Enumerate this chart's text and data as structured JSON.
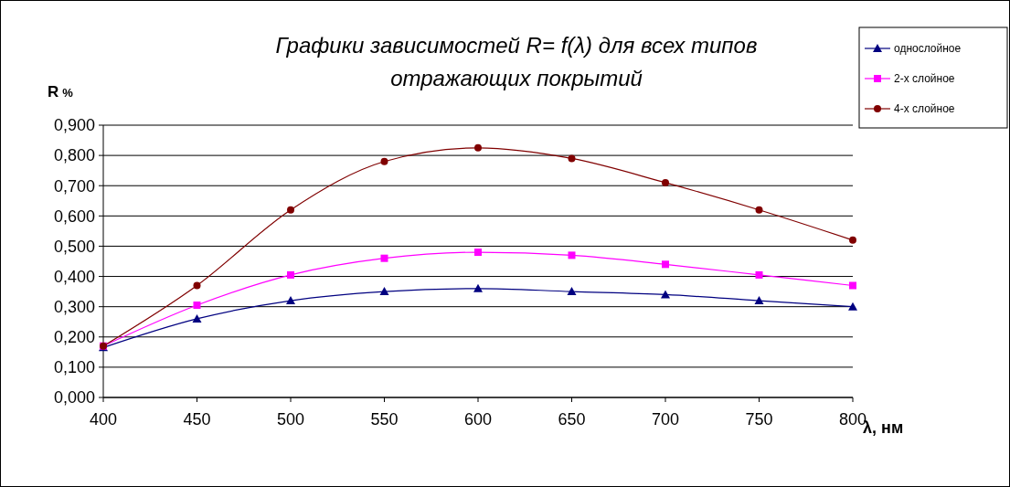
{
  "chart_data": {
    "type": "line",
    "title": "Графики зависимостей R= f(λ) для всех типов\nотражающих покрытий",
    "ylabel": "R %",
    "xlabel": "λ, нм",
    "x": [
      400,
      450,
      500,
      550,
      600,
      650,
      700,
      750,
      800
    ],
    "series": [
      {
        "name": "однослойное",
        "color": "#000080",
        "marker": "triangle",
        "values": [
          0.165,
          0.26,
          0.32,
          0.35,
          0.36,
          0.35,
          0.34,
          0.32,
          0.3
        ]
      },
      {
        "name": "2-х слойное",
        "color": "#ff00ff",
        "marker": "square",
        "values": [
          0.17,
          0.305,
          0.405,
          0.46,
          0.48,
          0.47,
          0.44,
          0.405,
          0.37
        ]
      },
      {
        "name": "4-х слойное",
        "color": "#800000",
        "marker": "circle",
        "values": [
          0.17,
          0.37,
          0.62,
          0.78,
          0.825,
          0.79,
          0.71,
          0.62,
          0.52
        ]
      }
    ],
    "xlim": [
      400,
      800
    ],
    "xticks": [
      400,
      450,
      500,
      550,
      600,
      650,
      700,
      750,
      800
    ],
    "ylim": [
      0,
      0.9
    ],
    "yticks": [
      {
        "value": 0,
        "label": "0,000"
      },
      {
        "value": 0.1,
        "label": "0,100"
      },
      {
        "value": 0.2,
        "label": "0,200"
      },
      {
        "value": 0.3,
        "label": "0,300"
      },
      {
        "value": 0.4,
        "label": "0,400"
      },
      {
        "value": 0.5,
        "label": "0,500"
      },
      {
        "value": 0.6,
        "label": "0,600"
      },
      {
        "value": 0.7,
        "label": "0,700"
      },
      {
        "value": 0.8,
        "label": "0,800"
      },
      {
        "value": 0.9,
        "label": "0,900"
      }
    ],
    "grid": "y",
    "legend": "top right",
    "line_style": "solid"
  }
}
